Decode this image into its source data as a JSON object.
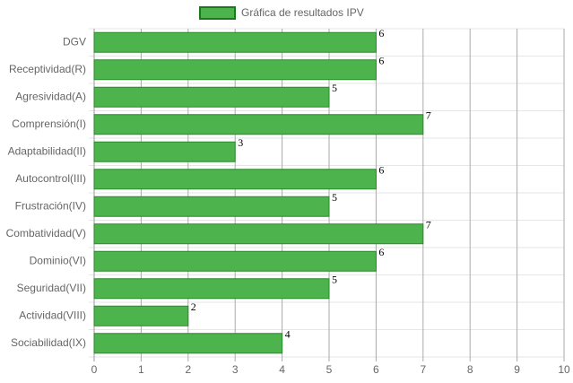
{
  "chart_data": {
    "type": "bar",
    "orientation": "horizontal",
    "legend": "Gráfica de resultados IPV",
    "categories": [
      "DGV",
      "Receptividad(R)",
      "Agresividad(A)",
      "Comprensión(I)",
      "Adaptabilidad(II)",
      "Autocontrol(III)",
      "Frustración(IV)",
      "Combatividad(V)",
      "Dominio(VI)",
      "Seguridad(VII)",
      "Actividad(VIII)",
      "Sociabilidad(IX)"
    ],
    "values": [
      6,
      6,
      5,
      7,
      3,
      6,
      5,
      7,
      6,
      5,
      2,
      4
    ],
    "color": "#4db34d",
    "border_color": "#2a8a2a",
    "xlim": [
      0,
      10
    ],
    "xticks": [
      0,
      1,
      2,
      3,
      4,
      5,
      6,
      7,
      8,
      9,
      10
    ],
    "grid": true,
    "legend_position": "top"
  }
}
